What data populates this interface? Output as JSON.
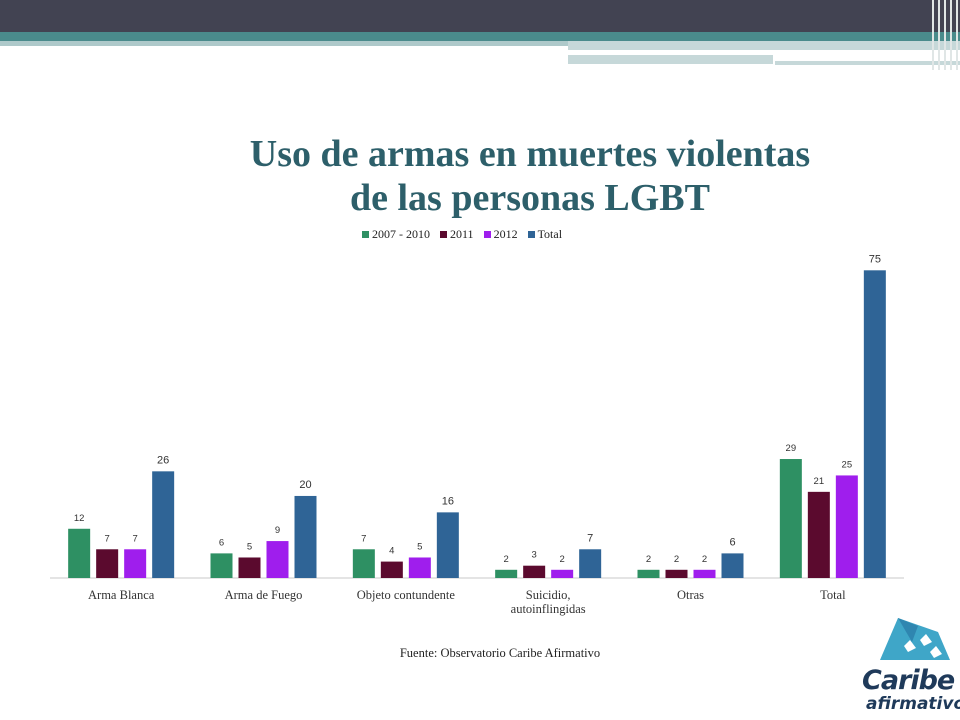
{
  "title_line1": "Uso de armas en muertes violentas",
  "title_line2": "de las personas LGBT",
  "source": "Fuente: Observatorio Caribe Afirmativo",
  "logo": {
    "line1": "Caribe",
    "line2": "afirmativo"
  },
  "chart_data": {
    "type": "bar",
    "categories": [
      "Arma Blanca",
      "Arma de Fuego",
      "Objeto contundente",
      "Suicidio, autoinflingidas",
      "Otras",
      "Total"
    ],
    "category_lines": [
      [
        "Arma Blanca"
      ],
      [
        "Arma de Fuego"
      ],
      [
        "Objeto contundente"
      ],
      [
        "Suicidio,",
        "autoinflingidas"
      ],
      [
        "Otras"
      ],
      [
        "Total"
      ]
    ],
    "series": [
      {
        "name": "2007 - 2010",
        "color": "#2e9063",
        "values": [
          12,
          6,
          7,
          2,
          2,
          29
        ]
      },
      {
        "name": "2011",
        "color": "#5b0a2e",
        "values": [
          7,
          5,
          4,
          3,
          2,
          21
        ]
      },
      {
        "name": "2012",
        "color": "#9f1eed",
        "values": [
          7,
          9,
          5,
          2,
          2,
          25
        ]
      },
      {
        "name": "Total",
        "color": "#2f6496",
        "values": [
          26,
          20,
          16,
          7,
          6,
          75
        ]
      }
    ],
    "ylim": [
      0,
      78
    ],
    "legend_position": "top",
    "grid": false
  }
}
